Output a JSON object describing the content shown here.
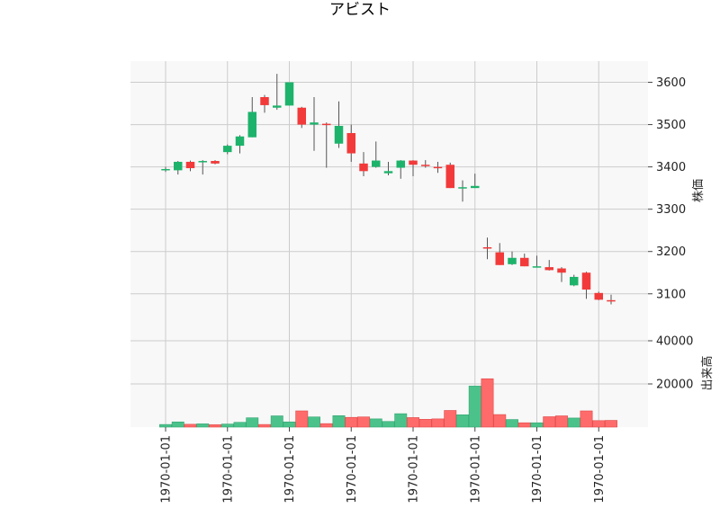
{
  "chart_data": {
    "type": "candlestick",
    "title": "アビスト",
    "price_panel": {
      "ylabel": "株価",
      "ylim": [
        3040,
        3650
      ],
      "yticks": [
        3100,
        3200,
        3300,
        3400,
        3500,
        3600
      ],
      "grid": true,
      "colors": {
        "up": "#1db36b",
        "down": "#f23a3a",
        "wick": "#555555"
      }
    },
    "volume_panel": {
      "ylabel": "出来高",
      "ylim": [
        0,
        50000
      ],
      "yticks": [
        20000,
        40000
      ],
      "grid": true,
      "colors": {
        "up": "#4cc28b",
        "down": "#ff6b6b"
      }
    },
    "x_tick_labels": [
      "1970-01-01",
      "1970-01-01",
      "1970-01-01",
      "1970-01-01",
      "1970-01-01",
      "1970-01-01",
      "1970-01-01",
      "1970-01-01"
    ],
    "x_tick_every": 5,
    "candles": [
      {
        "open": 3395,
        "high": 3400,
        "low": 3388,
        "close": 3395,
        "volume": 1200
      },
      {
        "open": 3392,
        "high": 3414,
        "low": 3382,
        "close": 3412,
        "volume": 2400
      },
      {
        "open": 3412,
        "high": 3415,
        "low": 3390,
        "close": 3397,
        "volume": 1300
      },
      {
        "open": 3414,
        "high": 3416,
        "low": 3382,
        "close": 3414,
        "volume": 1500
      },
      {
        "open": 3414,
        "high": 3416,
        "low": 3406,
        "close": 3408,
        "volume": 1100
      },
      {
        "open": 3435,
        "high": 3453,
        "low": 3430,
        "close": 3450,
        "volume": 1400
      },
      {
        "open": 3450,
        "high": 3475,
        "low": 3432,
        "close": 3472,
        "volume": 2200
      },
      {
        "open": 3470,
        "high": 3565,
        "low": 3470,
        "close": 3530,
        "volume": 4300
      },
      {
        "open": 3565,
        "high": 3570,
        "low": 3528,
        "close": 3546,
        "volume": 1200
      },
      {
        "open": 3540,
        "high": 3620,
        "low": 3535,
        "close": 3545,
        "volume": 5200
      },
      {
        "open": 3545,
        "high": 3600,
        "low": 3545,
        "close": 3600,
        "volume": 2400
      },
      {
        "open": 3540,
        "high": 3542,
        "low": 3492,
        "close": 3500,
        "volume": 7500
      },
      {
        "open": 3500,
        "high": 3565,
        "low": 3438,
        "close": 3505,
        "volume": 4700
      },
      {
        "open": 3502,
        "high": 3505,
        "low": 3398,
        "close": 3500,
        "volume": 1600
      },
      {
        "open": 3455,
        "high": 3555,
        "low": 3445,
        "close": 3497,
        "volume": 5300
      },
      {
        "open": 3480,
        "high": 3500,
        "low": 3412,
        "close": 3432,
        "volume": 4500
      },
      {
        "open": 3408,
        "high": 3435,
        "low": 3378,
        "close": 3390,
        "volume": 4700
      },
      {
        "open": 3400,
        "high": 3460,
        "low": 3398,
        "close": 3415,
        "volume": 3800
      },
      {
        "open": 3385,
        "high": 3412,
        "low": 3380,
        "close": 3390,
        "volume": 2600
      },
      {
        "open": 3398,
        "high": 3416,
        "low": 3372,
        "close": 3415,
        "volume": 6200
      },
      {
        "open": 3415,
        "high": 3416,
        "low": 3378,
        "close": 3405,
        "volume": 4400
      },
      {
        "open": 3405,
        "high": 3416,
        "low": 3398,
        "close": 3403,
        "volume": 3600
      },
      {
        "open": 3400,
        "high": 3412,
        "low": 3386,
        "close": 3398,
        "volume": 3800
      },
      {
        "open": 3405,
        "high": 3410,
        "low": 3350,
        "close": 3350,
        "volume": 7700
      },
      {
        "open": 3350,
        "high": 3368,
        "low": 3318,
        "close": 3352,
        "volume": 5700
      },
      {
        "open": 3350,
        "high": 3384,
        "low": 3350,
        "close": 3355,
        "volume": 19000
      },
      {
        "open": 3210,
        "high": 3233,
        "low": 3182,
        "close": 3207,
        "volume": 22400
      },
      {
        "open": 3198,
        "high": 3220,
        "low": 3168,
        "close": 3168,
        "volume": 5800
      },
      {
        "open": 3170,
        "high": 3200,
        "low": 3168,
        "close": 3185,
        "volume": 3500
      },
      {
        "open": 3185,
        "high": 3195,
        "low": 3165,
        "close": 3165,
        "volume": 2000
      },
      {
        "open": 3165,
        "high": 3190,
        "low": 3163,
        "close": 3165,
        "volume": 2000
      },
      {
        "open": 3163,
        "high": 3180,
        "low": 3155,
        "close": 3156,
        "volume": 4800
      },
      {
        "open": 3160,
        "high": 3163,
        "low": 3128,
        "close": 3150,
        "volume": 5200
      },
      {
        "open": 3120,
        "high": 3145,
        "low": 3118,
        "close": 3140,
        "volume": 4200
      },
      {
        "open": 3150,
        "high": 3152,
        "low": 3088,
        "close": 3110,
        "volume": 7500
      },
      {
        "open": 3102,
        "high": 3105,
        "low": 3085,
        "close": 3086,
        "volume": 3000
      },
      {
        "open": 3085,
        "high": 3098,
        "low": 3075,
        "close": 3082,
        "volume": 3100
      }
    ]
  }
}
